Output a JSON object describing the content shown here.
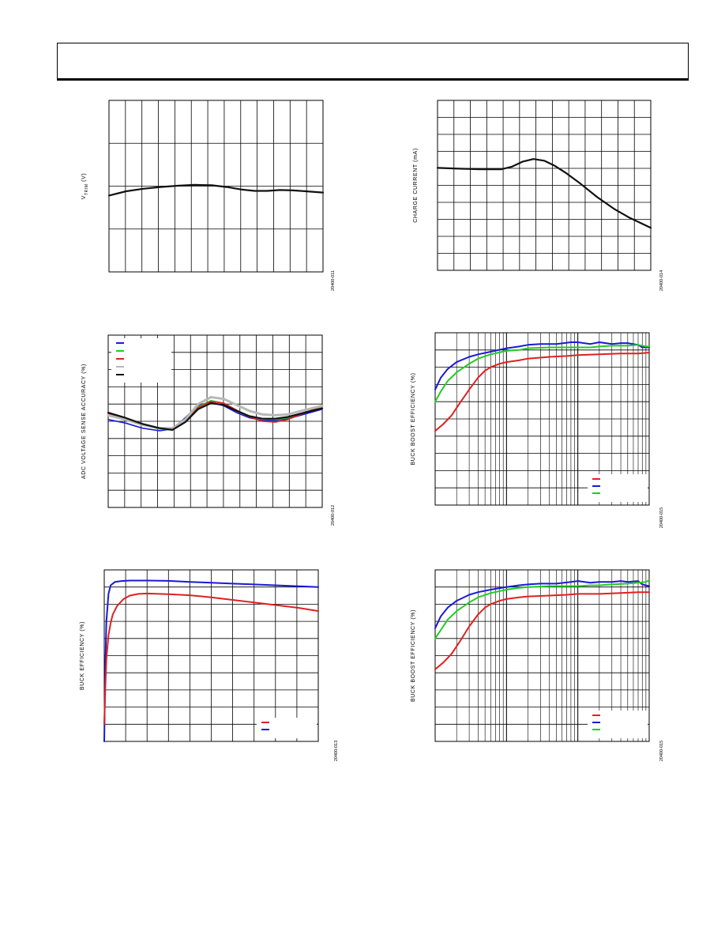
{
  "page": {
    "header_text": ""
  },
  "charts": [
    {
      "id": "chart-vtrim",
      "ylabel_main": "V",
      "ylabel_sub": "TRIM",
      "ylabel_tail": " (V)",
      "figure_id": "20400-011",
      "chart_data": {
        "type": "line",
        "x_scale": "linear",
        "xlim": [
          0,
          100
        ],
        "ylim": [
          0,
          4
        ],
        "grid": {
          "x_divisions": 13,
          "y_divisions": 4
        },
        "legend": null,
        "series": [
          {
            "color": "#111111",
            "width": 2.2,
            "x": [
              0,
              8,
              16,
              24,
              32,
              40,
              48,
              55,
              62,
              68,
              74,
              80,
              86,
              92,
              100
            ],
            "y": [
              1.78,
              1.88,
              1.94,
              1.98,
              2.01,
              2.03,
              2.02,
              1.98,
              1.92,
              1.89,
              1.89,
              1.91,
              1.9,
              1.88,
              1.85
            ]
          }
        ]
      }
    },
    {
      "id": "chart-charge-current",
      "ylabel_main": "CHARGE CURRENT (mA)",
      "ylabel_sub": "",
      "ylabel_tail": "",
      "figure_id": "20400-014",
      "chart_data": {
        "type": "line",
        "x_scale": "linear",
        "xlim": [
          0,
          100
        ],
        "ylim": [
          0,
          10
        ],
        "grid": {
          "x_divisions": 13,
          "y_divisions": 10
        },
        "legend": null,
        "series": [
          {
            "color": "#111111",
            "width": 2.2,
            "x": [
              0,
              10,
              20,
              30,
              35,
              40,
              45,
              50,
              55,
              60,
              67,
              75,
              83,
              90,
              100
            ],
            "y": [
              6.03,
              5.98,
              5.95,
              5.95,
              6.1,
              6.4,
              6.55,
              6.45,
              6.15,
              5.75,
              5.1,
              4.3,
              3.6,
              3.1,
              2.5
            ]
          }
        ]
      }
    },
    {
      "id": "chart-adc-accuracy",
      "ylabel_main": "ADC VOLTAGE SENSE ACCURACY (%)",
      "ylabel_sub": "",
      "ylabel_tail": "",
      "figure_id": "20400-012",
      "chart_data": {
        "type": "line",
        "x_scale": "linear",
        "xlim": [
          0,
          100
        ],
        "ylim": [
          0,
          10
        ],
        "grid": {
          "x_divisions": 13,
          "y_divisions": 10
        },
        "legend": {
          "position": "top-left",
          "colors": [
            "#1a1ad6",
            "#22cc22",
            "#e02020",
            "#b8b8b8",
            "#111111"
          ]
        },
        "series": [
          {
            "color": "#1a1ad6",
            "width": 1.6,
            "x": [
              0,
              8,
              16,
              24,
              30,
              36,
              42,
              48,
              54,
              60,
              66,
              72,
              78,
              84,
              90,
              100
            ],
            "y": [
              5.1,
              4.9,
              4.6,
              4.45,
              4.55,
              5.2,
              5.95,
              6.1,
              5.9,
              5.5,
              5.2,
              5.05,
              5.05,
              5.15,
              5.35,
              5.7
            ]
          },
          {
            "color": "#22cc22",
            "width": 1.6,
            "x": [
              0,
              8,
              16,
              24,
              30,
              36,
              42,
              48,
              54,
              60,
              66,
              72,
              78,
              84,
              90,
              100
            ],
            "y": [
              5.4,
              5.15,
              4.8,
              4.55,
              4.5,
              5.0,
              5.85,
              6.2,
              6.05,
              5.65,
              5.3,
              5.15,
              5.1,
              5.2,
              5.45,
              5.85
            ]
          },
          {
            "color": "#e02020",
            "width": 1.6,
            "x": [
              0,
              8,
              16,
              24,
              30,
              36,
              42,
              48,
              54,
              60,
              66,
              72,
              78,
              84,
              90,
              100
            ],
            "y": [
              5.45,
              5.2,
              4.85,
              4.6,
              4.5,
              4.95,
              5.8,
              6.15,
              6.05,
              5.65,
              5.25,
              5.0,
              4.95,
              5.1,
              5.4,
              5.9
            ]
          },
          {
            "color": "#b8b8b8",
            "width": 3.0,
            "x": [
              0,
              8,
              16,
              24,
              30,
              36,
              42,
              48,
              54,
              60,
              66,
              72,
              78,
              84,
              90,
              100
            ],
            "y": [
              5.35,
              5.1,
              4.8,
              4.6,
              4.6,
              5.1,
              6.0,
              6.4,
              6.3,
              5.95,
              5.6,
              5.4,
              5.35,
              5.4,
              5.6,
              5.9
            ]
          },
          {
            "color": "#111111",
            "width": 2.2,
            "x": [
              0,
              8,
              16,
              24,
              30,
              36,
              42,
              48,
              54,
              60,
              66,
              72,
              78,
              84,
              90,
              100
            ],
            "y": [
              5.5,
              5.2,
              4.85,
              4.6,
              4.5,
              4.95,
              5.7,
              6.05,
              5.95,
              5.6,
              5.3,
              5.15,
              5.15,
              5.25,
              5.45,
              5.75
            ]
          }
        ]
      }
    },
    {
      "id": "chart-buckboost-1",
      "ylabel_main": "BUCK BOOST EFFICIENCY (%)",
      "ylabel_sub": "",
      "ylabel_tail": "",
      "figure_id": "20400-015",
      "chart_data": {
        "type": "line",
        "x_scale": "log",
        "xlim": [
          1,
          1000
        ],
        "ylim": [
          0,
          100
        ],
        "grid": {
          "x_decades": 3,
          "y_divisions": 10
        },
        "legend": {
          "position": "bottom-right",
          "colors": [
            "#e02020",
            "#1a1ad6",
            "#22cc22"
          ]
        },
        "series": [
          {
            "color": "#e02020",
            "width": 2.0,
            "x": [
              1,
              1.3,
              1.7,
              2.2,
              3,
              4,
              5,
              6,
              8,
              10,
              15,
              20,
              40,
              70,
              100,
              200,
              400,
              700,
              1000
            ],
            "y": [
              43,
              47,
              52,
              59,
              67,
              74,
              78,
              80,
              82,
              83,
              84,
              85,
              86,
              86.5,
              87,
              87.5,
              88,
              88,
              88.5
            ]
          },
          {
            "color": "#1a1ad6",
            "width": 2.0,
            "x": [
              1,
              1.2,
              1.5,
              2,
              3,
              4,
              6,
              10,
              15,
              20,
              30,
              50,
              80,
              100,
              150,
              200,
              300,
              400,
              500,
              700,
              800,
              1000
            ],
            "y": [
              67,
              74,
              79,
              83,
              86,
              87.5,
              89,
              91,
              92,
              93,
              93.5,
              93.5,
              94.5,
              94.5,
              93.5,
              94.5,
              93.5,
              94,
              94,
              93,
              91.5,
              91.5
            ]
          },
          {
            "color": "#22cc22",
            "width": 2.0,
            "x": [
              1,
              1.2,
              1.5,
              2,
              3,
              4,
              6,
              10,
              15,
              20,
              40,
              60,
              100,
              150,
              200,
              300,
              500,
              700,
              900,
              1000
            ],
            "y": [
              60,
              66,
              72,
              77,
              82,
              85,
              87.5,
              89.5,
              90,
              91,
              91.5,
              91.5,
              91.5,
              91.5,
              92,
              92.5,
              92.5,
              93,
              92,
              92
            ]
          }
        ]
      }
    },
    {
      "id": "chart-buck",
      "ylabel_main": "BUCK EFFICIENCY (%)",
      "ylabel_sub": "",
      "ylabel_tail": "",
      "figure_id": "20400-013",
      "chart_data": {
        "type": "line",
        "x_scale": "linear",
        "xlim": [
          0,
          100
        ],
        "ylim": [
          0,
          10
        ],
        "grid": {
          "x_divisions": 10,
          "y_divisions": 10
        },
        "legend": {
          "position": "bottom-right",
          "colors": [
            "#e02020",
            "#1a1ad6"
          ]
        },
        "series": [
          {
            "color": "#1a1ad6",
            "width": 2.0,
            "x": [
              0,
              0.5,
              1,
              2,
              3,
              5,
              8,
              12,
              20,
              30,
              40,
              50,
              60,
              70,
              80,
              90,
              100
            ],
            "y": [
              0,
              4.5,
              7.0,
              8.6,
              9.1,
              9.3,
              9.35,
              9.38,
              9.38,
              9.36,
              9.3,
              9.25,
              9.2,
              9.15,
              9.1,
              9.05,
              9.0
            ]
          },
          {
            "color": "#e02020",
            "width": 2.0,
            "x": [
              0,
              0.5,
              1,
              2,
              3,
              4,
              6,
              9,
              12,
              16,
              20,
              30,
              40,
              50,
              60,
              70,
              80,
              90,
              100
            ],
            "y": [
              1.0,
              3.2,
              4.8,
              6.2,
              6.9,
              7.4,
              7.9,
              8.3,
              8.5,
              8.6,
              8.62,
              8.58,
              8.52,
              8.4,
              8.25,
              8.1,
              7.95,
              7.8,
              7.6
            ]
          }
        ]
      }
    },
    {
      "id": "chart-buckboost-2",
      "ylabel_main": "BUCK BOOST EFFICIENCY (%)",
      "ylabel_sub": "",
      "ylabel_tail": "",
      "figure_id": "20400-015",
      "chart_data": {
        "type": "line",
        "x_scale": "log",
        "xlim": [
          1,
          1000
        ],
        "ylim": [
          0,
          100
        ],
        "grid": {
          "x_decades": 3,
          "y_divisions": 10
        },
        "legend": {
          "position": "bottom-right",
          "colors": [
            "#e02020",
            "#1a1ad6",
            "#22cc22"
          ]
        },
        "series": [
          {
            "color": "#e02020",
            "width": 2.0,
            "x": [
              1,
              1.3,
              1.7,
              2.2,
              3,
              4,
              5,
              6,
              8,
              10,
              15,
              20,
              40,
              70,
              100,
              200,
              400,
              700,
              1000
            ],
            "y": [
              42,
              46,
              51,
              58,
              67,
              74,
              78,
              80,
              82,
              83,
              84,
              84.5,
              85,
              85.5,
              86,
              86,
              86.5,
              87,
              87
            ]
          },
          {
            "color": "#1a1ad6",
            "width": 2.0,
            "x": [
              1,
              1.2,
              1.5,
              2,
              3,
              4,
              6,
              10,
              15,
              20,
              30,
              50,
              80,
              100,
              150,
              200,
              300,
              400,
              500,
              700,
              800,
              1000
            ],
            "y": [
              66,
              73,
              78,
              82,
              85.5,
              87,
              88.5,
              90,
              91,
              91.5,
              92,
              92,
              93,
              93.5,
              92.5,
              93,
              93,
              93.5,
              93,
              93.5,
              91.5,
              90.5
            ]
          },
          {
            "color": "#22cc22",
            "width": 2.0,
            "x": [
              1,
              1.2,
              1.5,
              2,
              3,
              4,
              6,
              10,
              15,
              20,
              40,
              60,
              100,
              150,
              200,
              300,
              500,
              700,
              900,
              1000
            ],
            "y": [
              60,
              65,
              71,
              76,
              81,
              84,
              86.5,
              88.5,
              89.5,
              90,
              90.5,
              90.5,
              90.5,
              91,
              91,
              91.5,
              92,
              92.5,
              93,
              94
            ]
          }
        ]
      }
    }
  ]
}
